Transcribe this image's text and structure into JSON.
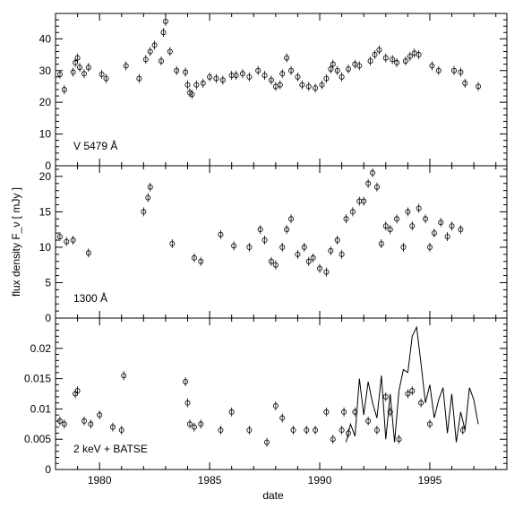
{
  "chart_data": [
    {
      "type": "scatter",
      "title": "",
      "panel_label": "V 5479 Å",
      "xlabel": "date",
      "ylabel": "flux density F_ν [ mJy ]",
      "xlim": [
        1978,
        1998.5
      ],
      "ylim": [
        0,
        48
      ],
      "yticks": [
        0,
        10,
        20,
        30,
        40
      ],
      "grid": false,
      "series": [
        {
          "style": "points",
          "x": [
            1978.2,
            1978.4,
            1978.8,
            1978.9,
            1979.0,
            1979.1,
            1979.3,
            1979.5,
            1980.1,
            1980.3,
            1981.2,
            1981.8,
            1982.1,
            1982.3,
            1982.5,
            1982.8,
            1982.9,
            1983.0,
            1983.2,
            1983.5,
            1983.9,
            1984.0,
            1984.1,
            1984.2,
            1984.4,
            1984.7,
            1985.0,
            1985.3,
            1985.6,
            1986.0,
            1986.2,
            1986.5,
            1986.8,
            1987.2,
            1987.5,
            1987.8,
            1988.0,
            1988.2,
            1988.3,
            1988.5,
            1988.7,
            1989.0,
            1989.2,
            1989.5,
            1989.8,
            1990.1,
            1990.3,
            1990.5,
            1990.6,
            1990.8,
            1991.0,
            1991.3,
            1991.6,
            1991.8,
            1992.3,
            1992.5,
            1992.7,
            1993.0,
            1993.3,
            1993.5,
            1993.9,
            1994.1,
            1994.3,
            1994.5,
            1995.1,
            1995.4,
            1996.1,
            1996.4,
            1996.6,
            1997.2
          ],
          "y": [
            28.8,
            24.0,
            29.5,
            32.5,
            34.0,
            31.0,
            29.0,
            31.0,
            28.8,
            27.5,
            31.5,
            27.5,
            33.5,
            36.0,
            38.0,
            33.0,
            42.0,
            45.5,
            36.0,
            30.0,
            29.5,
            25.5,
            23.0,
            22.5,
            25.5,
            26.0,
            28.0,
            27.5,
            27.0,
            28.5,
            28.5,
            29.0,
            28.0,
            30.0,
            28.5,
            27.0,
            25.0,
            25.5,
            29.0,
            34.0,
            30.0,
            28.0,
            25.5,
            25.0,
            24.5,
            25.5,
            27.5,
            30.5,
            32.0,
            30.0,
            28.0,
            30.5,
            32.0,
            31.5,
            33.0,
            35.0,
            36.5,
            34.0,
            33.5,
            32.5,
            33.0,
            34.5,
            35.5,
            35.0,
            31.5,
            30.0,
            30.0,
            29.5,
            26.0,
            25.0
          ]
        }
      ]
    },
    {
      "type": "scatter",
      "title": "",
      "panel_label": "1300 Å",
      "xlabel": "date",
      "ylabel": "flux density F_ν [ mJy ]",
      "xlim": [
        1978,
        1998.5
      ],
      "ylim": [
        0,
        21.5
      ],
      "yticks": [
        0,
        5,
        10,
        15,
        20
      ],
      "grid": false,
      "series": [
        {
          "style": "points",
          "x": [
            1978.2,
            1978.5,
            1978.8,
            1979.5,
            1982.0,
            1982.2,
            1982.3,
            1983.3,
            1984.3,
            1984.6,
            1985.5,
            1986.1,
            1986.8,
            1987.3,
            1987.5,
            1987.8,
            1988.0,
            1988.3,
            1988.5,
            1988.7,
            1989.0,
            1989.3,
            1989.5,
            1989.7,
            1990.0,
            1990.3,
            1990.5,
            1990.8,
            1991.0,
            1991.2,
            1991.5,
            1991.8,
            1992.0,
            1992.2,
            1992.4,
            1992.6,
            1992.8,
            1993.0,
            1993.2,
            1993.5,
            1993.8,
            1994.0,
            1994.2,
            1994.5,
            1994.8,
            1995.0,
            1995.2,
            1995.5,
            1995.8,
            1996.0,
            1996.4
          ],
          "y": [
            11.5,
            10.8,
            11.0,
            9.2,
            15.0,
            17.0,
            18.5,
            10.5,
            8.5,
            8.0,
            11.8,
            10.2,
            10.0,
            12.5,
            11.0,
            8.0,
            7.5,
            10.0,
            12.5,
            14.0,
            9.0,
            10.0,
            8.0,
            8.5,
            7.0,
            6.5,
            9.5,
            11.0,
            9.0,
            14.0,
            15.0,
            16.5,
            16.5,
            19.0,
            20.5,
            18.5,
            10.5,
            13.0,
            12.5,
            14.0,
            10.0,
            15.0,
            13.0,
            15.5,
            14.0,
            10.0,
            12.0,
            13.5,
            11.5,
            13.0,
            12.5
          ]
        }
      ]
    },
    {
      "type": "line",
      "title": "",
      "panel_label": "2 keV + BATSE",
      "xlabel": "date",
      "ylabel": "flux density F_ν [ mJy ]",
      "xlim": [
        1978,
        1998.5
      ],
      "ylim": [
        0,
        0.025
      ],
      "yticks": [
        0,
        0.005,
        0.01,
        0.015,
        0.02
      ],
      "xticks": [
        1980,
        1985,
        1990,
        1995
      ],
      "grid": false,
      "series": [
        {
          "style": "points",
          "x": [
            1978.2,
            1978.4,
            1978.9,
            1979.0,
            1979.3,
            1979.6,
            1980.0,
            1980.6,
            1981.0,
            1981.1,
            1983.9,
            1984.0,
            1984.1,
            1984.3,
            1984.6,
            1985.5,
            1986.0,
            1986.8,
            1987.6,
            1988.0,
            1988.3,
            1988.8,
            1989.4,
            1989.8,
            1990.3,
            1990.6,
            1991.0,
            1991.1,
            1991.3,
            1991.6,
            1992.2,
            1992.6,
            1993.0,
            1993.2,
            1993.6,
            1994.0,
            1994.2,
            1994.6,
            1995.0,
            1996.5
          ],
          "y": [
            0.008,
            0.0075,
            0.0125,
            0.013,
            0.008,
            0.0075,
            0.009,
            0.007,
            0.0065,
            0.0155,
            0.0145,
            0.011,
            0.0075,
            0.007,
            0.0075,
            0.0065,
            0.0095,
            0.0065,
            0.0045,
            0.0105,
            0.0085,
            0.0065,
            0.0065,
            0.0065,
            0.0095,
            0.005,
            0.0065,
            0.0095,
            0.006,
            0.0095,
            0.008,
            0.0065,
            0.012,
            0.0095,
            0.005,
            0.0125,
            0.013,
            0.011,
            0.0075,
            0.0065
          ]
        },
        {
          "style": "line",
          "x": [
            1991.2,
            1991.4,
            1991.6,
            1991.8,
            1992.0,
            1992.2,
            1992.4,
            1992.6,
            1992.8,
            1993.0,
            1993.2,
            1993.4,
            1993.6,
            1993.8,
            1994.0,
            1994.2,
            1994.4,
            1994.6,
            1994.8,
            1995.0,
            1995.2,
            1995.4,
            1995.6,
            1995.8,
            1996.0,
            1996.2,
            1996.4,
            1996.6,
            1996.8,
            1997.0,
            1997.2
          ],
          "y": [
            0.0045,
            0.0075,
            0.0055,
            0.015,
            0.009,
            0.0145,
            0.011,
            0.0085,
            0.0155,
            0.005,
            0.0125,
            0.0045,
            0.013,
            0.0165,
            0.016,
            0.022,
            0.0235,
            0.0175,
            0.011,
            0.014,
            0.0085,
            0.0115,
            0.0135,
            0.006,
            0.0125,
            0.0045,
            0.0095,
            0.0065,
            0.0135,
            0.0115,
            0.0075
          ]
        }
      ]
    }
  ]
}
